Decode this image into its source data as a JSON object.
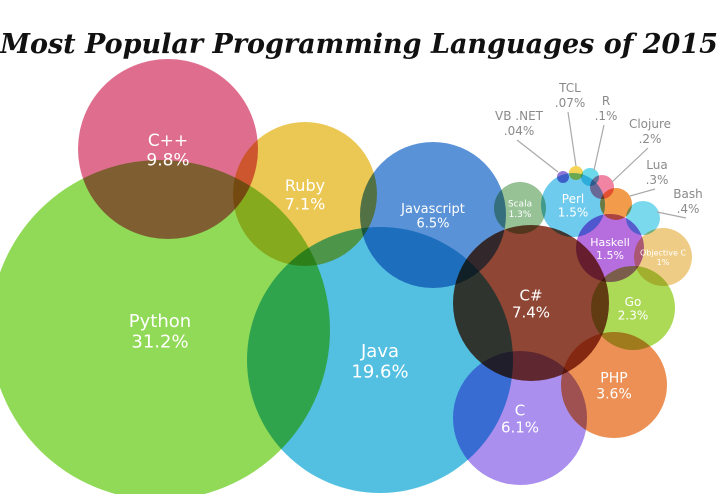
{
  "chart_data": {
    "type": "bubble",
    "title": "Most Popular Programming Languages of 2015",
    "unit": "%",
    "series": [
      {
        "name": "Python",
        "value": "31.2%",
        "color": "#7ed33a"
      },
      {
        "name": "Java",
        "value": "19.6%",
        "color": "#35b5dc"
      },
      {
        "name": "C++",
        "value": "9.8%",
        "color": "#d9557a"
      },
      {
        "name": "C#",
        "value": "7.4%",
        "color": "#7b2610"
      },
      {
        "name": "Ruby",
        "value": "7.1%",
        "color": "#e8bd35"
      },
      {
        "name": "Javascript",
        "value": "6.5%",
        "color": "#3c7fcf"
      },
      {
        "name": "C",
        "value": "6.1%",
        "color": "#9b7bec"
      },
      {
        "name": "PHP",
        "value": "3.6%",
        "color": "#ea7c37"
      },
      {
        "name": "Go",
        "value": "2.3%",
        "color": "#9ed33a"
      },
      {
        "name": "Perl",
        "value": "1.5%",
        "color": "#55c2ea"
      },
      {
        "name": "Haskell",
        "value": "1.5%",
        "color": "#a954d8"
      },
      {
        "name": "Scala",
        "value": "1.3%",
        "color": "#84b784"
      },
      {
        "name": "Objective C",
        "value": "1%",
        "color": "#ecc370"
      },
      {
        "name": "Bash",
        "value": ".4%",
        "color": "#63d2e9"
      },
      {
        "name": "Lua",
        "value": ".3%",
        "color": "#ee8a2c"
      },
      {
        "name": "Clojure",
        "value": ".2%",
        "color": "#ee6f93"
      },
      {
        "name": "R",
        "value": ".1%",
        "color": "#52d2e8"
      },
      {
        "name": "TCL",
        "value": ".07%",
        "color": "#f4cd3b"
      },
      {
        "name": "VB .NET",
        "value": ".04%",
        "color": "#7b5fd0"
      }
    ]
  }
}
